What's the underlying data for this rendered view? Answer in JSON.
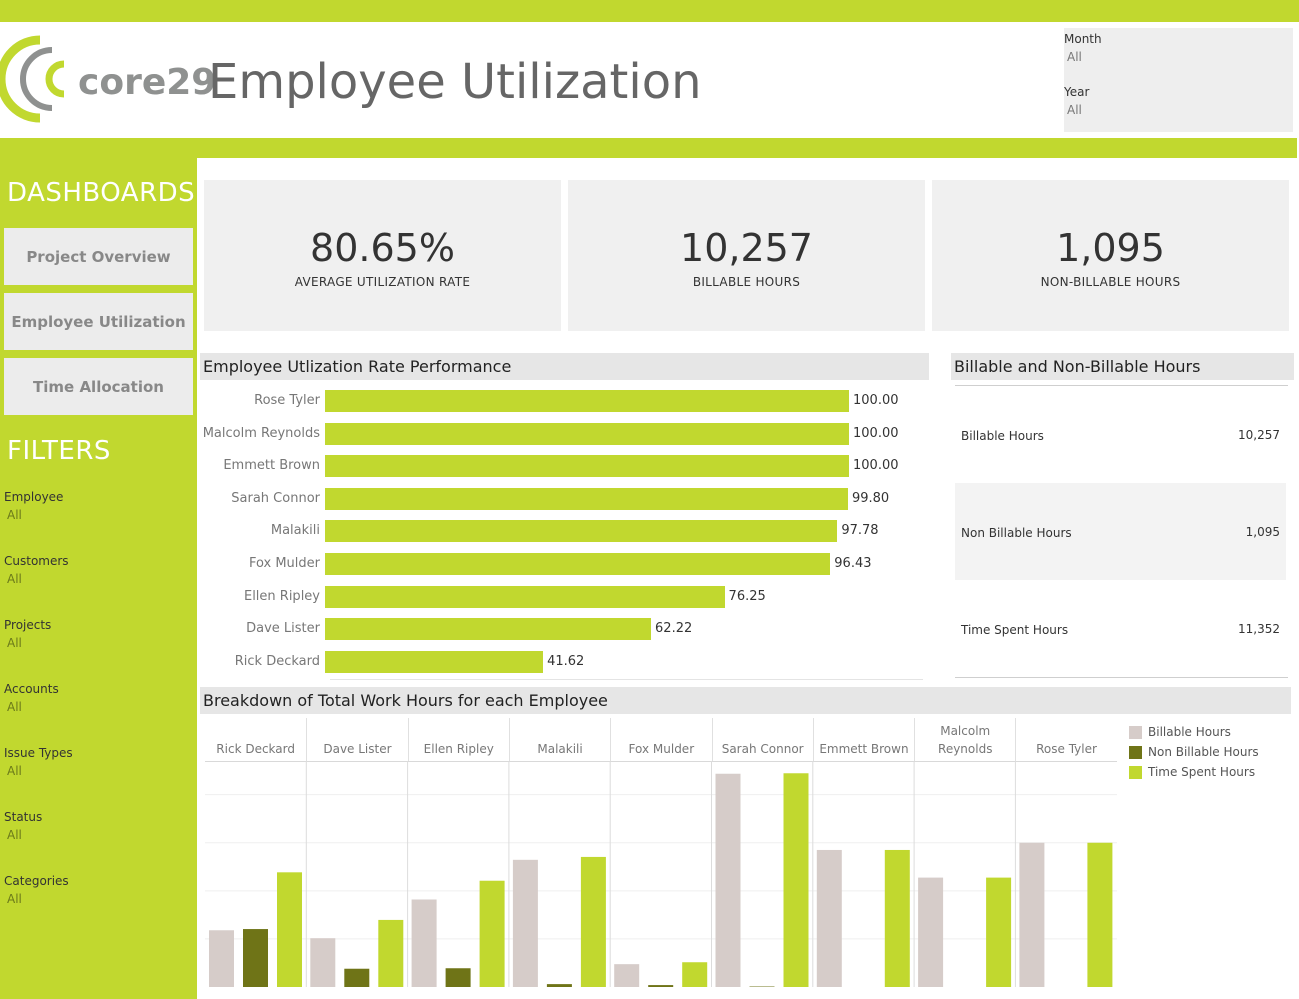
{
  "header": {
    "title": "Employee Utilization",
    "logo_text": "core29"
  },
  "top_filters": [
    {
      "label": "Month",
      "value": "All"
    },
    {
      "label": "Year",
      "value": "All"
    }
  ],
  "sidebar": {
    "dashboards_heading": "DASHBOARDS",
    "nav": [
      {
        "label": "Project Overview"
      },
      {
        "label": "Employee Utilization"
      },
      {
        "label": "Time Allocation"
      }
    ],
    "filters_heading": "FILTERS",
    "filters": [
      {
        "label": "Employee",
        "value": "All"
      },
      {
        "label": "Customers",
        "value": "All"
      },
      {
        "label": "Projects",
        "value": "All"
      },
      {
        "label": "Accounts",
        "value": "All"
      },
      {
        "label": "Issue Types",
        "value": "All"
      },
      {
        "label": "Status",
        "value": "All"
      },
      {
        "label": "Categories",
        "value": "All"
      }
    ]
  },
  "kpis": [
    {
      "value": "80.65%",
      "label": "AVERAGE UTILIZATION RATE"
    },
    {
      "value": "10,257",
      "label": "BILLABLE HOURS"
    },
    {
      "value": "1,095",
      "label": "NON-BILLABLE HOURS"
    }
  ],
  "colors": {
    "accent": "#c1d82f",
    "billable": "#d6ccc9",
    "non_billable": "#6f7417",
    "time_spent": "#c1d82f"
  },
  "chart_data": [
    {
      "type": "bar",
      "orientation": "horizontal",
      "title": "Employee Utlization Rate Performance",
      "categories": [
        "Rose Tyler",
        "Malcolm Reynolds",
        "Emmett Brown",
        "Sarah Connor",
        "Malakili",
        "Fox Mulder",
        "Ellen Ripley",
        "Dave Lister",
        "Rick Deckard"
      ],
      "values": [
        100.0,
        100.0,
        100.0,
        99.8,
        97.78,
        96.43,
        76.25,
        62.22,
        41.62
      ],
      "value_labels": [
        "100.00",
        "100.00",
        "100.00",
        "99.80",
        "97.78",
        "96.43",
        "76.25",
        "62.22",
        "41.62"
      ],
      "xlim": [
        0,
        100
      ]
    },
    {
      "type": "table",
      "title": "Billable and Non-Billable Hours",
      "rows": [
        {
          "label": "Billable Hours",
          "value": "10,257"
        },
        {
          "label": "Non Billable Hours",
          "value": "1,095"
        },
        {
          "label": "Time Spent Hours",
          "value": "11,352"
        }
      ]
    },
    {
      "type": "bar",
      "title": "Breakdown of Total Work Hours for each Employee",
      "categories": [
        "Rick Deckard",
        "Dave Lister",
        "Ellen Ripley",
        "Malakili",
        "Fox Mulder",
        "Sarah Connor",
        "Emmett Brown",
        "Malcolm Reynolds",
        "Rose Tyler"
      ],
      "series": [
        {
          "name": "Billable Hours",
          "values": [
            236,
            203,
            364,
            529,
            95,
            887,
            570,
            455,
            600
          ]
        },
        {
          "name": "Non Billable Hours",
          "values": [
            241,
            76,
            78,
            12,
            8,
            2,
            0,
            0,
            0
          ]
        },
        {
          "name": "Time Spent Hours",
          "values": [
            477,
            279,
            442,
            541,
            103,
            889,
            570,
            455,
            600
          ]
        }
      ],
      "ylim": [
        0,
        940
      ],
      "grid": true,
      "legend": "right"
    }
  ]
}
